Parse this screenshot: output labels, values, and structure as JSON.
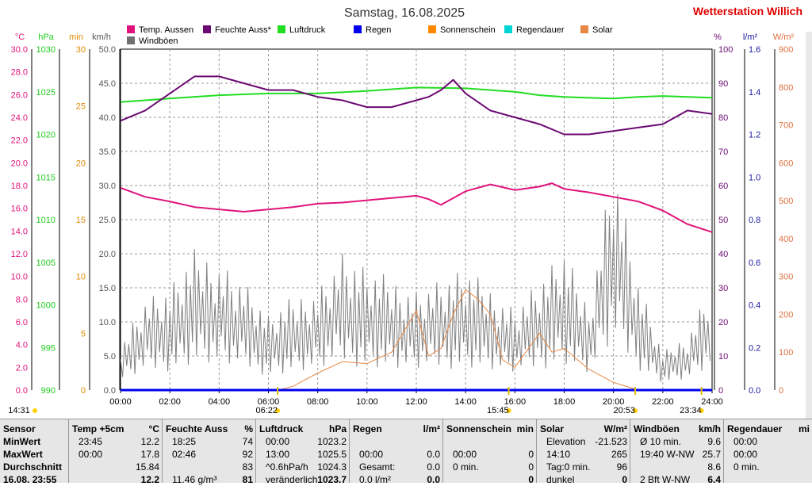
{
  "title": "Samstag, 16.08.2025",
  "station": "Wetterstation Willich",
  "legend": [
    {
      "label": "Temp. Aussen",
      "color": "#e0137c"
    },
    {
      "label": "Feuchte Auss*",
      "color": "#6b0a73"
    },
    {
      "label": "Luftdruck",
      "color": "#22dd22"
    },
    {
      "label": "Regen",
      "color": "#0000ee"
    },
    {
      "label": "Sonnenschein",
      "color": "#ff8800"
    },
    {
      "label": "Regendauer",
      "color": "#00d6d6"
    },
    {
      "label": "Solar",
      "color": "#e88844"
    },
    {
      "label": "Windböen",
      "color": "#707070"
    }
  ],
  "axes": {
    "c": {
      "unit": "°C",
      "color": "#e0137c",
      "ticks": [
        "30.0",
        "28.0",
        "26.0",
        "24.0",
        "22.0",
        "20.0",
        "18.0",
        "16.0",
        "14.0",
        "12.0",
        "10.0",
        "8.0",
        "6.0",
        "4.0",
        "2.0",
        "0.0"
      ]
    },
    "hpa": {
      "unit": "hPa",
      "color": "#22cc22",
      "ticks": [
        "1030",
        "1025",
        "1020",
        "1015",
        "1010",
        "1005",
        "1000",
        "995",
        "990"
      ]
    },
    "min": {
      "unit": "min",
      "color": "#e08800",
      "ticks": [
        "30",
        "25",
        "20",
        "15",
        "10",
        "5",
        "0"
      ]
    },
    "kmh": {
      "unit": "km/h",
      "color": "#555555",
      "ticks": [
        "50.0",
        "45.0",
        "40.0",
        "35.0",
        "30.0",
        "25.0",
        "20.0",
        "15.0",
        "10.0",
        "5.0",
        "0.0"
      ]
    },
    "pct": {
      "unit": "%",
      "color": "#6b0a73",
      "ticks": [
        "100",
        "90",
        "80",
        "70",
        "60",
        "50",
        "40",
        "30",
        "20",
        "10",
        "0"
      ]
    },
    "lm2": {
      "unit": "l/m²",
      "color": "#1a1aa0",
      "ticks": [
        "1.6",
        "1.4",
        "1.2",
        "1.0",
        "0.8",
        "0.6",
        "0.4",
        "0.2",
        "0.0"
      ]
    },
    "wm2": {
      "unit": "W/m²",
      "color": "#e07040",
      "ticks": [
        "900",
        "800",
        "700",
        "600",
        "500",
        "400",
        "300",
        "200",
        "100",
        "0"
      ]
    }
  },
  "x_ticks": [
    "00:00",
    "02:00",
    "04:00",
    "06:00",
    "08:00",
    "10:00",
    "12:00",
    "14:00",
    "16:00",
    "18:00",
    "20:00",
    "22:00",
    "24:00"
  ],
  "markers": [
    {
      "label": "14:31",
      "hour": null
    },
    {
      "label": "06:22",
      "hour": 6.37
    },
    {
      "label": "15:45",
      "hour": 15.75
    },
    {
      "label": "20:53",
      "hour": 20.88
    },
    {
      "label": "23:34",
      "hour": 23.57
    }
  ],
  "chart_data": {
    "type": "line",
    "xlim": [
      0,
      24
    ],
    "series": [
      {
        "name": "Temp. Aussen",
        "axis": "°C",
        "x": [
          0,
          1,
          2,
          3,
          4,
          5,
          6,
          7,
          8,
          9,
          10,
          11,
          12,
          12.5,
          13,
          14,
          15,
          16,
          17,
          17.5,
          18,
          19,
          20,
          21,
          22,
          23,
          24
        ],
        "y": [
          17.8,
          17.0,
          16.6,
          16.1,
          15.9,
          15.7,
          15.9,
          16.1,
          16.4,
          16.5,
          16.7,
          16.9,
          17.1,
          16.8,
          16.3,
          17.5,
          18.1,
          17.6,
          17.9,
          18.2,
          17.7,
          17.4,
          17.0,
          16.6,
          15.8,
          14.6,
          13.9
        ]
      },
      {
        "name": "Feuchte Auss*",
        "axis": "%",
        "x": [
          0,
          1,
          2,
          3,
          4,
          5,
          6,
          7,
          8,
          9,
          10,
          11,
          12,
          12.5,
          13,
          13.5,
          14,
          15,
          16,
          17,
          18,
          19,
          20,
          21,
          22,
          23,
          24
        ],
        "y": [
          79,
          82,
          87,
          92,
          92,
          90,
          88,
          88,
          86,
          85,
          83,
          83,
          85,
          86,
          88,
          91,
          87,
          82,
          80,
          78,
          75,
          75,
          76,
          77,
          78,
          82,
          81
        ]
      },
      {
        "name": "Luftdruck",
        "axis": "hPa",
        "x": [
          0,
          2,
          4,
          6,
          8,
          10,
          12,
          14,
          16,
          17,
          18,
          20,
          21,
          22,
          24
        ],
        "y": [
          1023.8,
          1024.2,
          1024.6,
          1024.8,
          1024.8,
          1025.1,
          1025.5,
          1025.4,
          1025.0,
          1024.6,
          1024.4,
          1024.2,
          1024.4,
          1024.5,
          1024.3
        ]
      },
      {
        "name": "Regen",
        "axis": "l/m²",
        "x": [
          0,
          24
        ],
        "y": [
          0.0,
          0.0
        ]
      },
      {
        "name": "Solar",
        "axis": "W/m²",
        "x": [
          6.4,
          7,
          8,
          9,
          10,
          11,
          12,
          12.5,
          13,
          13.5,
          14,
          14.5,
          15,
          15.5,
          16,
          17,
          17.5,
          18,
          19,
          20,
          21
        ],
        "y": [
          0,
          10,
          45,
          75,
          70,
          100,
          210,
          90,
          110,
          200,
          265,
          240,
          200,
          80,
          60,
          150,
          100,
          110,
          55,
          20,
          0
        ]
      },
      {
        "name": "Windböen",
        "axis": "km/h",
        "x": [
          0,
          1,
          2,
          3,
          4,
          5,
          6,
          7,
          8,
          9,
          10,
          11,
          12,
          13,
          14,
          15,
          16,
          17,
          18,
          19,
          20,
          21,
          22,
          23,
          24
        ],
        "y": [
          5.0,
          10.0,
          11.0,
          15.0,
          14.0,
          12.0,
          8.0,
          10.0,
          11.0,
          15.0,
          13.0,
          12.0,
          11.0,
          12.0,
          13.0,
          11.0,
          9.0,
          12.0,
          15.0,
          9.0,
          25.7,
          12.0,
          4.0,
          6.0,
          12.0
        ]
      }
    ]
  },
  "table": {
    "labels": [
      "Sensor",
      "MinWert",
      "MaxWert",
      "Durchschnitt",
      "16.08. 23:55"
    ],
    "temp": {
      "h1": "Temp +5cm",
      "h2": "°C",
      "rows": [
        [
          "23:45",
          "12.2"
        ],
        [
          "00:00",
          "17.8"
        ],
        [
          "",
          "15.84"
        ],
        [
          "",
          "12.2"
        ]
      ]
    },
    "hum": {
      "h1": "Feuchte Auss",
      "h2": "%",
      "rows": [
        [
          "18:25",
          "74"
        ],
        [
          "02:46",
          "92"
        ],
        [
          "",
          "83"
        ],
        [
          "11.46 g/m³",
          "81"
        ]
      ]
    },
    "press": {
      "h1": "Luftdruck",
      "h2": "hPa",
      "rows": [
        [
          "00:00",
          "1023.2"
        ],
        [
          "13:00",
          "1025.5"
        ],
        [
          "^0.6hPa/h",
          "1024.3"
        ],
        [
          "veränderlich",
          "1023.7"
        ]
      ]
    },
    "rain": {
      "h1": "Regen",
      "h2": "l/m²",
      "rows": [
        [
          "",
          ""
        ],
        [
          "00:00",
          "0.0"
        ],
        [
          "Gesamt:",
          "0.0"
        ],
        [
          "0.0 l/m²",
          "0.0"
        ]
      ]
    },
    "sun": {
      "h1": "Sonnenschein",
      "h2": "min",
      "rows": [
        [
          "",
          ""
        ],
        [
          "00:00",
          "0"
        ],
        [
          "0 min.",
          "0"
        ],
        [
          "",
          "0"
        ]
      ]
    },
    "solar": {
      "h1": "Solar",
      "h2": "W/m²",
      "rows": [
        [
          "Elevation",
          "-21.523"
        ],
        [
          "14:10",
          "265"
        ],
        [
          "Tag:0 min.",
          "96"
        ],
        [
          "dunkel",
          "0"
        ]
      ]
    },
    "wind": {
      "h1": "Windböen",
      "h2": "km/h",
      "rows": [
        [
          "Ø 10 min.",
          "9.6"
        ],
        [
          "19:40   W-NW",
          "25.7"
        ],
        [
          "",
          "8.6"
        ],
        [
          "2 Bft W-NW",
          "6.4"
        ]
      ]
    },
    "raind": {
      "h1": "Regendauer",
      "h2": "mi",
      "rows": [
        [
          "00:00",
          ""
        ],
        [
          "00:00",
          ""
        ],
        [
          "0 min.",
          ""
        ],
        [
          "",
          ""
        ]
      ]
    }
  }
}
